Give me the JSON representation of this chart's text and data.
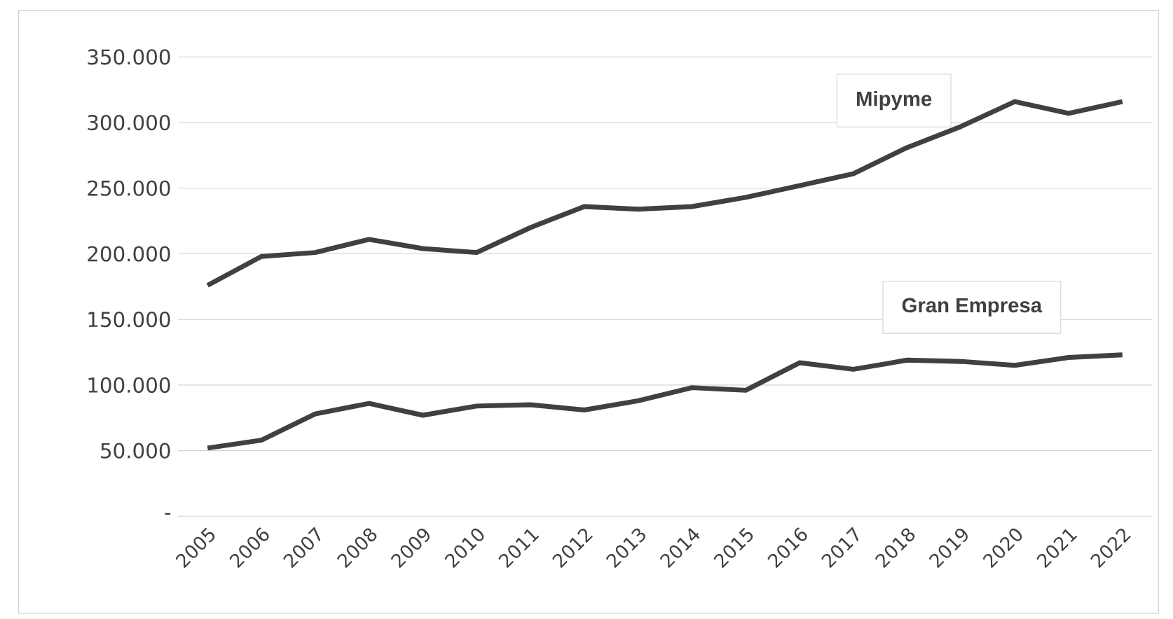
{
  "chart_data": {
    "type": "line",
    "categories": [
      "2005",
      "2006",
      "2007",
      "2008",
      "2009",
      "2010",
      "2011",
      "2012",
      "2013",
      "2014",
      "2015",
      "2016",
      "2017",
      "2018",
      "2019",
      "2020",
      "2021",
      "2022"
    ],
    "series": [
      {
        "name": "Mipyme",
        "color": "#404040",
        "values": [
          176000,
          198000,
          201000,
          211000,
          204000,
          201000,
          220000,
          236000,
          234000,
          236000,
          243000,
          252000,
          261000,
          281000,
          297000,
          316000,
          307000,
          316000
        ]
      },
      {
        "name": "Gran Empresa",
        "color": "#404040",
        "values": [
          52000,
          58000,
          78000,
          86000,
          77000,
          84000,
          85000,
          81000,
          88000,
          98000,
          96000,
          117000,
          112000,
          119000,
          118000,
          115000,
          121000,
          123000
        ]
      }
    ],
    "ylim": [
      0,
      350000
    ],
    "yticks": [
      {
        "value": 0,
        "label": "-"
      },
      {
        "value": 50000,
        "label": "50.000"
      },
      {
        "value": 100000,
        "label": "100.000"
      },
      {
        "value": 150000,
        "label": "150.000"
      },
      {
        "value": 200000,
        "label": "200.000"
      },
      {
        "value": 250000,
        "label": "250.000"
      },
      {
        "value": 300000,
        "label": "300.000"
      },
      {
        "value": 350000,
        "label": "350.000"
      }
    ],
    "grid": "y",
    "legend": false,
    "marker": "none",
    "line_style": "solid"
  }
}
